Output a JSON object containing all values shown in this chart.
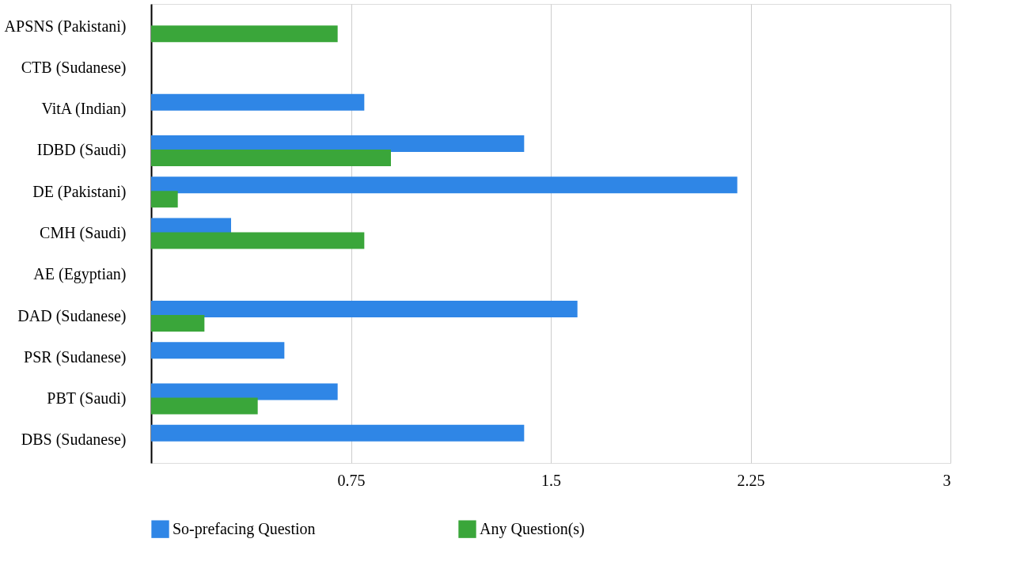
{
  "chart_data": {
    "type": "bar",
    "orientation": "horizontal",
    "categories": [
      "APSNS (Pakistani)",
      "CTB (Sudanese)",
      "VitA (Indian)",
      "IDBD (Saudi)",
      "DE (Pakistani)",
      "CMH (Saudi)",
      "AE (Egyptian)",
      "DAD (Sudanese)",
      "PSR (Sudanese)",
      "PBT (Saudi)",
      "DBS (Sudanese)"
    ],
    "series": [
      {
        "name": "So-prefacing Question",
        "color": "#2f86e6",
        "values": [
          null,
          null,
          0.8,
          1.4,
          2.2,
          0.3,
          null,
          1.6,
          0.5,
          0.7,
          1.4
        ]
      },
      {
        "name": "Any Question(s)",
        "color": "#3aa63a",
        "values": [
          0.7,
          null,
          null,
          0.9,
          0.1,
          0.8,
          null,
          0.2,
          null,
          0.4,
          null
        ]
      }
    ],
    "xlim": [
      0,
      3
    ],
    "xticks": [
      {
        "value": 0,
        "label": null
      },
      0.75,
      1.5,
      2.25,
      3
    ],
    "grid": "x",
    "legend": "bottom"
  }
}
